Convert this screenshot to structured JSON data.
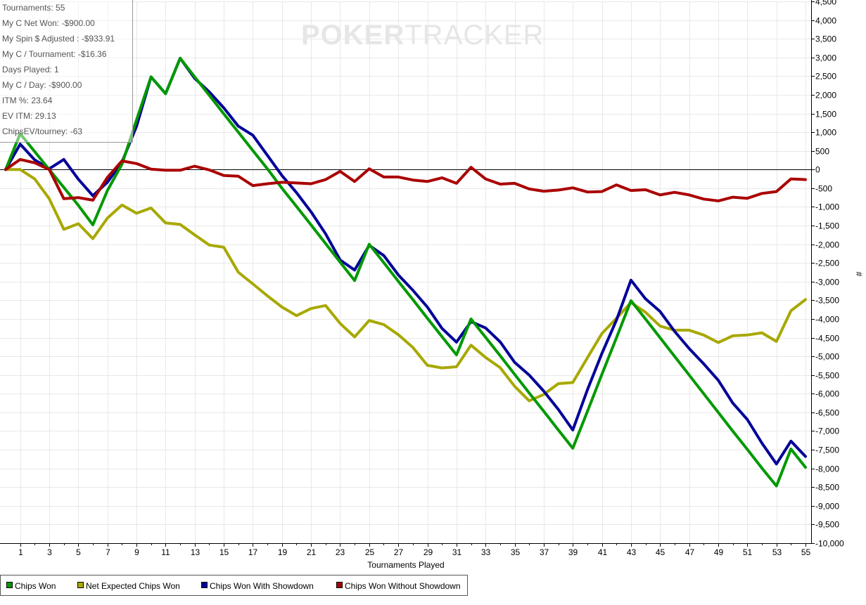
{
  "watermark": {
    "part1": "POKER",
    "part2": "TRACKER"
  },
  "stats": [
    "Tournaments: 55",
    "My C Net Won: -$900.00",
    "My Spin $ Adjusted : -$933.91",
    "My C / Tournament: -$16.36",
    "Days Played: 1",
    "My C / Day: -$900.00",
    "ITM %: 23.64",
    "EV ITM: 29.13",
    "ChipsEV/tourney: -63"
  ],
  "chart_data": {
    "type": "line",
    "xlabel": "Tournaments Played",
    "ylabel": "#",
    "xlim": [
      0,
      55
    ],
    "ylim": [
      -10000,
      4500
    ],
    "x_ticks": [
      1,
      3,
      5,
      7,
      9,
      11,
      13,
      15,
      17,
      19,
      21,
      23,
      25,
      27,
      29,
      31,
      33,
      35,
      37,
      39,
      41,
      43,
      45,
      47,
      49,
      51,
      53,
      55
    ],
    "y_ticks": [
      4500,
      4000,
      3500,
      3000,
      2500,
      2000,
      1500,
      1000,
      500,
      0,
      -500,
      -1000,
      -1500,
      -2000,
      -2500,
      -3000,
      -3500,
      -4000,
      -4500,
      -5000,
      -5500,
      -6000,
      -6500,
      -7000,
      -7500,
      -8000,
      -8500,
      -9000,
      -9500,
      -10000
    ],
    "y_tick_labels": [
      "4,500",
      "4,000",
      "3,500",
      "3,000",
      "2,500",
      "2,000",
      "1,500",
      "1,000",
      "500",
      "0",
      "-500",
      "-1,000",
      "-1,500",
      "-2,000",
      "-2,500",
      "-3,000",
      "-3,500",
      "-4,000",
      "-4,500",
      "-5,000",
      "-5,500",
      "-6,000",
      "-6,500",
      "-7,000",
      "-7,500",
      "-8,000",
      "-8,500",
      "-9,000",
      "-9,500",
      "-10,000"
    ],
    "legend_placement": "bottom-left",
    "grid": true,
    "series": [
      {
        "name": "Net Expected Chips Won",
        "color": "#a8a800",
        "x": [
          0,
          1,
          2,
          3,
          4,
          5,
          6,
          7,
          8,
          9,
          10,
          11,
          12,
          13,
          14,
          15,
          16,
          17,
          18,
          19,
          20,
          21,
          22,
          23,
          24,
          25,
          26,
          27,
          28,
          29,
          30,
          31,
          32,
          33,
          34,
          35,
          36,
          37,
          38,
          39,
          40,
          41,
          42,
          43,
          44,
          45,
          46,
          47,
          48,
          49,
          50,
          51,
          52,
          53,
          54,
          55
        ],
        "values": [
          0,
          0,
          -250,
          -780,
          -1600,
          -1450,
          -1850,
          -1300,
          -950,
          -1170,
          -1030,
          -1430,
          -1470,
          -1750,
          -2020,
          -2080,
          -2750,
          -3060,
          -3380,
          -3680,
          -3910,
          -3720,
          -3640,
          -4120,
          -4480,
          -4040,
          -4150,
          -4420,
          -4760,
          -5240,
          -5310,
          -5280,
          -4700,
          -5030,
          -5300,
          -5800,
          -6190,
          -6020,
          -5730,
          -5700,
          -5040,
          -4390,
          -3980,
          -3560,
          -3820,
          -4190,
          -4300,
          -4300,
          -4430,
          -4630,
          -4450,
          -4430,
          -4370,
          -4600,
          -3780,
          -3480
        ]
      },
      {
        "name": "Chips Won With Showdown",
        "color": "#000099",
        "x": [
          0,
          1,
          2,
          3,
          4,
          5,
          6,
          7,
          8,
          9,
          10,
          11,
          12,
          13,
          14,
          15,
          16,
          17,
          18,
          19,
          20,
          21,
          22,
          23,
          24,
          25,
          26,
          27,
          28,
          29,
          30,
          31,
          32,
          33,
          34,
          35,
          36,
          37,
          38,
          39,
          40,
          41,
          42,
          43,
          44,
          45,
          46,
          47,
          48,
          49,
          50,
          51,
          52,
          53,
          54,
          55
        ],
        "values": [
          0,
          680,
          260,
          20,
          270,
          -260,
          -700,
          -340,
          200,
          1160,
          2480,
          2030,
          2980,
          2440,
          2080,
          1650,
          1160,
          920,
          380,
          -160,
          -620,
          -1130,
          -1720,
          -2420,
          -2690,
          -2030,
          -2300,
          -2820,
          -3230,
          -3680,
          -4250,
          -4620,
          -4070,
          -4240,
          -4610,
          -5160,
          -5500,
          -5930,
          -6420,
          -6970,
          -5900,
          -4920,
          -4030,
          -2960,
          -3460,
          -3800,
          -4330,
          -4790,
          -5200,
          -5640,
          -6250,
          -6690,
          -7320,
          -7880,
          -7270,
          -7680
        ]
      },
      {
        "name": "Chips Won",
        "color": "#009900",
        "x": [
          0,
          1,
          2,
          3,
          4,
          5,
          6,
          7,
          8,
          9,
          10,
          11,
          12,
          13,
          14,
          15,
          16,
          17,
          18,
          19,
          20,
          21,
          22,
          23,
          24,
          25,
          26,
          27,
          28,
          29,
          30,
          31,
          32,
          33,
          34,
          35,
          36,
          37,
          38,
          39,
          40,
          41,
          42,
          43,
          44,
          45,
          46,
          47,
          48,
          49,
          50,
          51,
          52,
          53,
          54,
          55
        ],
        "values": [
          0,
          960,
          480,
          0,
          -480,
          -960,
          -1480,
          -560,
          140,
          1330,
          2480,
          2030,
          2980,
          2480,
          1990,
          1490,
          1000,
          510,
          20,
          -500,
          -990,
          -1480,
          -1980,
          -2480,
          -2970,
          -2000,
          -2490,
          -2990,
          -3480,
          -3980,
          -4470,
          -4960,
          -4000,
          -4490,
          -4980,
          -5480,
          -5980,
          -6470,
          -6970,
          -7460,
          -6480,
          -5480,
          -4500,
          -3510,
          -4000,
          -4500,
          -5000,
          -5500,
          -6000,
          -6500,
          -7000,
          -7490,
          -7990,
          -8470,
          -7480,
          -7970
        ]
      },
      {
        "name": "Chips Won Without Showdown",
        "color": "#aa0000",
        "x": [
          0,
          1,
          2,
          3,
          4,
          5,
          6,
          7,
          8,
          9,
          10,
          11,
          12,
          13,
          14,
          15,
          16,
          17,
          18,
          19,
          20,
          21,
          22,
          23,
          24,
          25,
          26,
          27,
          28,
          29,
          30,
          31,
          32,
          33,
          34,
          35,
          36,
          37,
          38,
          39,
          40,
          41,
          42,
          43,
          44,
          45,
          46,
          47,
          48,
          49,
          50,
          51,
          52,
          53,
          54,
          55
        ],
        "values": [
          0,
          270,
          180,
          0,
          -780,
          -750,
          -820,
          -210,
          230,
          160,
          10,
          -20,
          -20,
          90,
          -10,
          -160,
          -180,
          -430,
          -380,
          -340,
          -360,
          -380,
          -270,
          -50,
          -320,
          20,
          -200,
          -200,
          -280,
          -320,
          -220,
          -370,
          60,
          -250,
          -390,
          -370,
          -520,
          -580,
          -550,
          -490,
          -600,
          -590,
          -410,
          -560,
          -540,
          -680,
          -610,
          -680,
          -790,
          -840,
          -740,
          -770,
          -640,
          -590,
          -250,
          -270
        ]
      }
    ]
  },
  "legend": {
    "items": [
      {
        "label": "Chips Won",
        "color": "#009900"
      },
      {
        "label": "Net Expected Chips Won",
        "color": "#a8a800"
      },
      {
        "label": "Chips Won With Showdown",
        "color": "#000099"
      },
      {
        "label": "Chips Won Without Showdown",
        "color": "#aa0000"
      }
    ]
  }
}
